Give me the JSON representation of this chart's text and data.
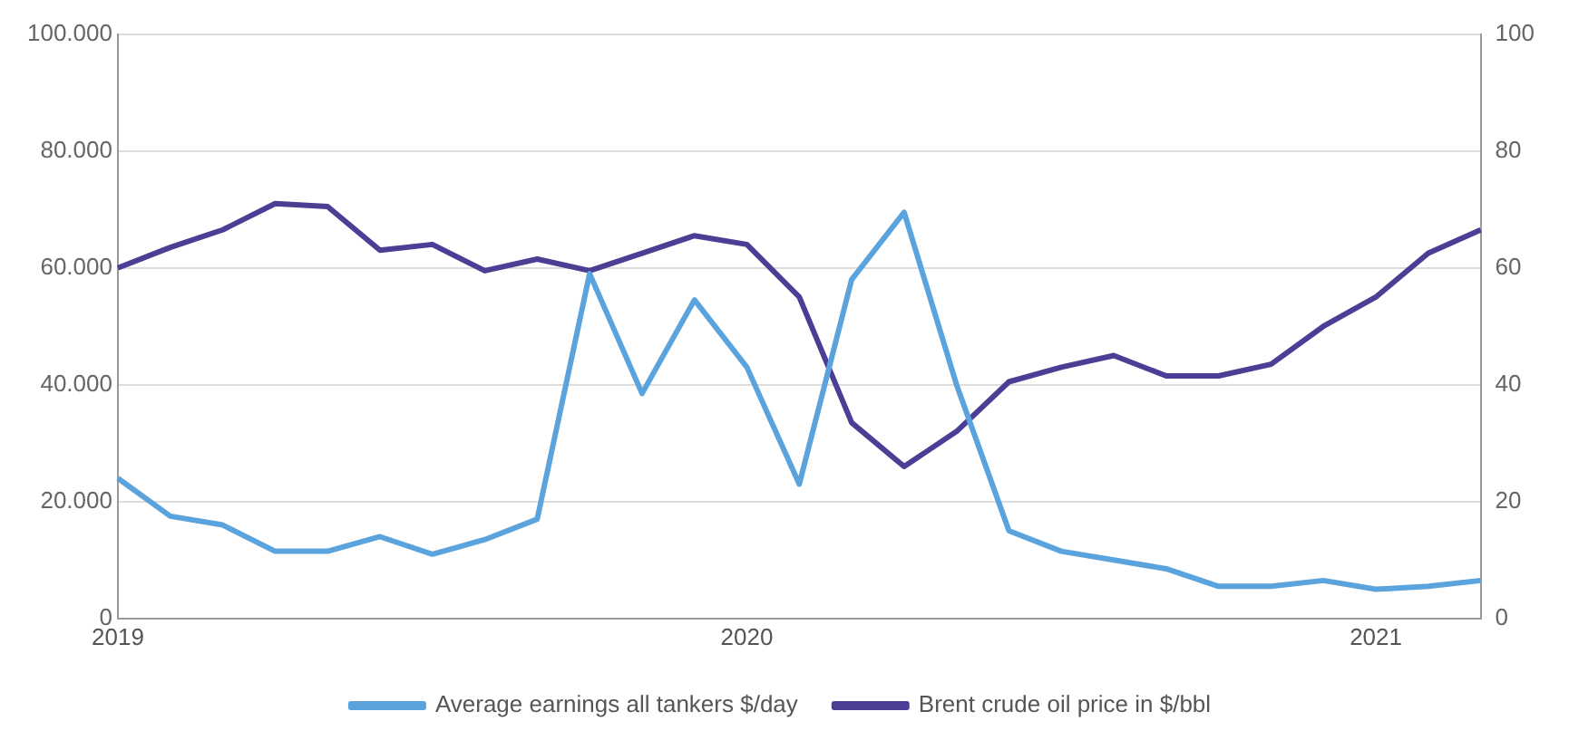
{
  "chart_data": {
    "type": "line",
    "categories": [
      "2019",
      null,
      null,
      null,
      null,
      null,
      null,
      null,
      null,
      null,
      null,
      null,
      "2020",
      null,
      null,
      null,
      null,
      null,
      null,
      null,
      null,
      null,
      null,
      null,
      "2021",
      null,
      null
    ],
    "series": [
      {
        "name": "Average earnings all tankers $/day",
        "color": "#5ba3dd",
        "values": [
          24000,
          17500,
          16000,
          11500,
          11500,
          14000,
          11000,
          13500,
          17000,
          59000,
          38500,
          54500,
          43000,
          23000,
          58000,
          69500,
          40000,
          15000,
          11500,
          10000,
          8500,
          5500,
          5500,
          6500,
          5000,
          5500,
          6500
        ]
      },
      {
        "name": "Brent crude oil price in $/bbl",
        "color": "#4b3f95",
        "axis": "y2",
        "values": [
          60,
          63.5,
          66.5,
          71,
          70.5,
          63,
          64,
          59.5,
          61.5,
          59.5,
          62.5,
          65.5,
          64,
          55,
          33.5,
          26,
          32,
          40.5,
          43,
          45,
          41.5,
          41.5,
          43.5,
          50,
          55,
          62.5,
          66.5
        ]
      }
    ],
    "ylim": [
      0,
      100000
    ],
    "yticks": [
      0,
      {
        "value": 20000,
        "label": "20.000"
      },
      {
        "value": 40000,
        "label": "40.000"
      },
      {
        "value": 60000,
        "label": "60.000"
      },
      {
        "value": 80000,
        "label": "80.000"
      },
      {
        "value": 100000,
        "label": "100.000"
      }
    ],
    "y2lim": [
      0,
      100
    ],
    "y2ticks": [
      0,
      20,
      40,
      60,
      80,
      100
    ],
    "grid": "y",
    "legend": "bottom",
    "marker": "none",
    "line_style": "solid"
  }
}
